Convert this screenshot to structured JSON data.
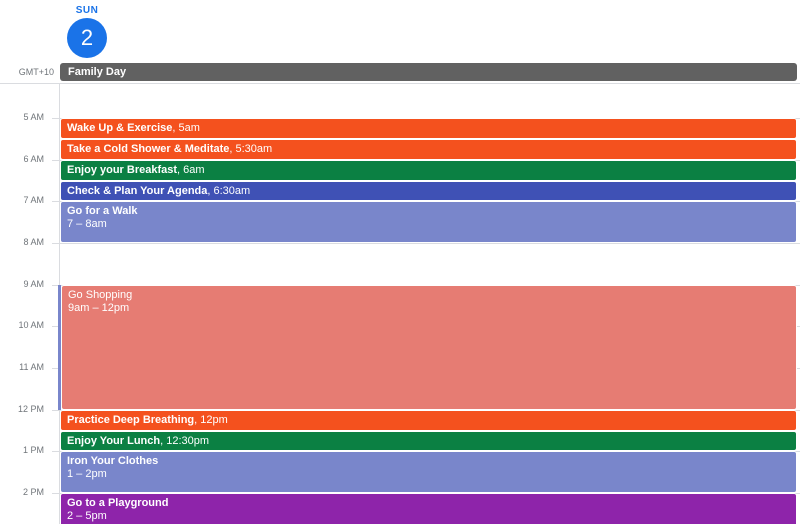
{
  "header": {
    "day_name": "SUN",
    "day_number": "2"
  },
  "timezone": "GMT+10",
  "all_day_event": {
    "title": "Family Day",
    "color": "#616161"
  },
  "hours": [
    "5 AM",
    "6 AM",
    "7 AM",
    "8 AM",
    "9 AM",
    "10 AM",
    "11 AM",
    "12 PM",
    "1 PM",
    "2 PM"
  ],
  "events": [
    {
      "title": "Wake Up & Exercise",
      "time": ", 5am",
      "color": "#f4511e"
    },
    {
      "title": "Take a Cold Shower & Meditate",
      "time": ", 5:30am",
      "color": "#f4511e"
    },
    {
      "title": "Enjoy your Breakfast",
      "time": ", 6am",
      "color": "#0b8043"
    },
    {
      "title": "Check & Plan Your Agenda",
      "time": ", 6:30am",
      "color": "#3f51b5"
    },
    {
      "title": "Go for a Walk",
      "time": "7 – 8am",
      "color": "#7986cb"
    },
    {
      "title": "Go Shopping",
      "time": "9am – 12pm",
      "color": "#e67c73"
    },
    {
      "title": "Practice Deep Breathing",
      "time": ", 12pm",
      "color": "#f4511e"
    },
    {
      "title": "Enjoy Your Lunch",
      "time": ", 12:30pm",
      "color": "#0b8043"
    },
    {
      "title": "Iron Your Clothes",
      "time": "1 – 2pm",
      "color": "#7986cb"
    },
    {
      "title": "Go to a Playground",
      "time": "2 – 5pm",
      "color": "#8e24aa"
    }
  ]
}
